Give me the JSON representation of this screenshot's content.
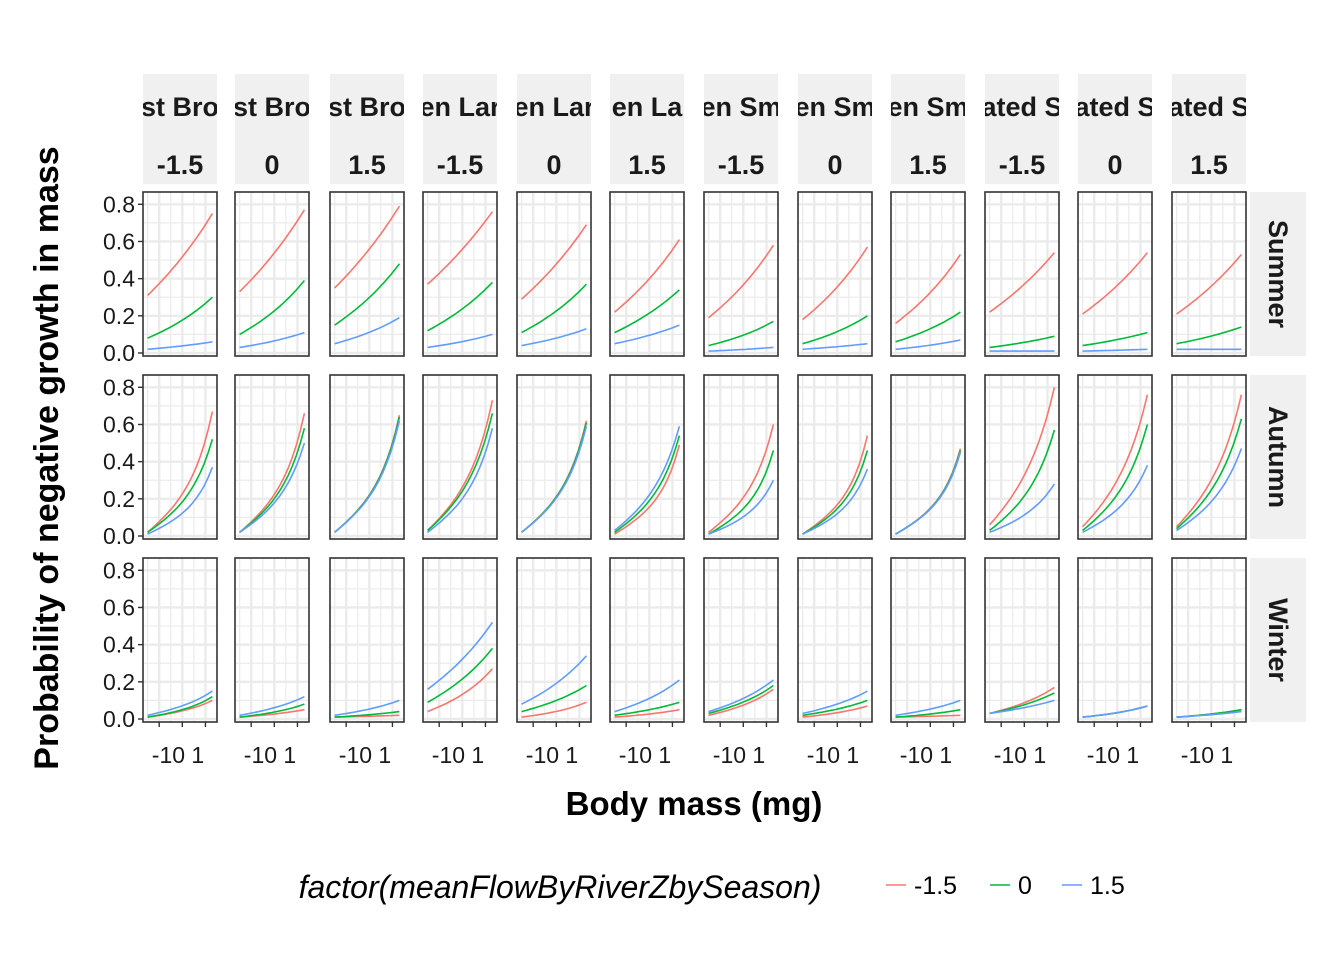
{
  "colors": {
    "series": [
      "#F8766D",
      "#00BA38",
      "#619CFF"
    ],
    "strip_background": "#F0F0F0",
    "grid": "#EBEBEB",
    "panel_border": "#333333"
  },
  "legend": {
    "title": "factor(meanFlowByRiverZbySeason)",
    "position": "bottom",
    "items": [
      "-1.5",
      "0",
      "1.5"
    ]
  },
  "chart_data": {
    "type": "line",
    "xlabel": "Body mass (mg)",
    "ylabel": "Probability of negative growth in mass",
    "grid": true,
    "ylim": [
      0,
      0.85
    ],
    "y_ticks": [
      "0.0",
      "0.2",
      "0.4",
      "0.6",
      "0.8"
    ],
    "x_tick_label": "-10 1",
    "x_tick_label_text": [
      "-10",
      "1"
    ],
    "x_ticks": [
      -1,
      0,
      1
    ],
    "x_tick_labels": [
      "-1",
      "0",
      "1"
    ],
    "xlim": [
      -1.7,
      1.5
    ],
    "x_range": [
      -1.5,
      1.3
    ],
    "column_headers_top": [
      "st Bro",
      "st Bro",
      "st Bro",
      "en Lar",
      "en Lar",
      "en La",
      "en Sm",
      "en Sm",
      "en Sm",
      "ated S",
      "ated S",
      "ated S"
    ],
    "column_headers_bottom": [
      "-1.5",
      "0",
      "1.5",
      "-1.5",
      "0",
      "1.5",
      "-1.5",
      "0",
      "1.5",
      "-1.5",
      "0",
      "1.5"
    ],
    "row_headers": [
      "Summer",
      "Autumn",
      "Winter"
    ],
    "series_names": [
      "-1.5",
      "0",
      "1.5"
    ],
    "panels": [
      [
        {
          "series": [
            [
              0.31,
              0.75
            ],
            [
              0.08,
              0.3
            ],
            [
              0.02,
              0.06
            ]
          ]
        },
        {
          "series": [
            [
              0.33,
              0.77
            ],
            [
              0.1,
              0.39
            ],
            [
              0.03,
              0.11
            ]
          ]
        },
        {
          "series": [
            [
              0.35,
              0.79
            ],
            [
              0.15,
              0.48
            ],
            [
              0.05,
              0.19
            ]
          ]
        },
        {
          "series": [
            [
              0.37,
              0.76
            ],
            [
              0.12,
              0.38
            ],
            [
              0.03,
              0.1
            ]
          ]
        },
        {
          "series": [
            [
              0.29,
              0.69
            ],
            [
              0.11,
              0.37
            ],
            [
              0.04,
              0.13
            ]
          ]
        },
        {
          "series": [
            [
              0.22,
              0.61
            ],
            [
              0.11,
              0.34
            ],
            [
              0.05,
              0.15
            ]
          ]
        },
        {
          "series": [
            [
              0.19,
              0.58
            ],
            [
              0.04,
              0.17
            ],
            [
              0.01,
              0.03
            ]
          ]
        },
        {
          "series": [
            [
              0.18,
              0.57
            ],
            [
              0.05,
              0.2
            ],
            [
              0.02,
              0.05
            ]
          ]
        },
        {
          "series": [
            [
              0.16,
              0.53
            ],
            [
              0.06,
              0.22
            ],
            [
              0.02,
              0.07
            ]
          ]
        },
        {
          "series": [
            [
              0.22,
              0.54
            ],
            [
              0.03,
              0.09
            ],
            [
              0.01,
              0.01
            ]
          ]
        },
        {
          "series": [
            [
              0.21,
              0.54
            ],
            [
              0.04,
              0.11
            ],
            [
              0.01,
              0.02
            ]
          ]
        },
        {
          "series": [
            [
              0.21,
              0.53
            ],
            [
              0.05,
              0.14
            ],
            [
              0.02,
              0.02
            ]
          ]
        }
      ],
      [
        {
          "series": [
            [
              0.02,
              0.67
            ],
            [
              0.02,
              0.52
            ],
            [
              0.01,
              0.37
            ]
          ]
        },
        {
          "series": [
            [
              0.02,
              0.66
            ],
            [
              0.02,
              0.58
            ],
            [
              0.02,
              0.5
            ]
          ]
        },
        {
          "series": [
            [
              0.02,
              0.65
            ],
            [
              0.02,
              0.64
            ],
            [
              0.02,
              0.62
            ]
          ]
        },
        {
          "series": [
            [
              0.03,
              0.73
            ],
            [
              0.03,
              0.66
            ],
            [
              0.02,
              0.58
            ]
          ]
        },
        {
          "series": [
            [
              0.02,
              0.62
            ],
            [
              0.02,
              0.61
            ],
            [
              0.02,
              0.59
            ]
          ]
        },
        {
          "series": [
            [
              0.01,
              0.49
            ],
            [
              0.02,
              0.54
            ],
            [
              0.03,
              0.59
            ]
          ]
        },
        {
          "series": [
            [
              0.02,
              0.6
            ],
            [
              0.01,
              0.46
            ],
            [
              0.01,
              0.3
            ]
          ]
        },
        {
          "series": [
            [
              0.01,
              0.54
            ],
            [
              0.01,
              0.46
            ],
            [
              0.01,
              0.36
            ]
          ]
        },
        {
          "series": [
            [
              0.01,
              0.47
            ],
            [
              0.01,
              0.46
            ],
            [
              0.01,
              0.45
            ]
          ]
        },
        {
          "series": [
            [
              0.06,
              0.8
            ],
            [
              0.03,
              0.57
            ],
            [
              0.02,
              0.28
            ]
          ]
        },
        {
          "series": [
            [
              0.05,
              0.76
            ],
            [
              0.03,
              0.6
            ],
            [
              0.02,
              0.38
            ]
          ]
        },
        {
          "series": [
            [
              0.05,
              0.76
            ],
            [
              0.04,
              0.63
            ],
            [
              0.03,
              0.47
            ]
          ]
        }
      ],
      [
        {
          "series": [
            [
              0.01,
              0.1
            ],
            [
              0.01,
              0.12
            ],
            [
              0.02,
              0.15
            ]
          ]
        },
        {
          "series": [
            [
              0.01,
              0.05
            ],
            [
              0.01,
              0.08
            ],
            [
              0.02,
              0.12
            ]
          ]
        },
        {
          "series": [
            [
              0.01,
              0.02
            ],
            [
              0.01,
              0.04
            ],
            [
              0.02,
              0.1
            ]
          ]
        },
        {
          "series": [
            [
              0.04,
              0.27
            ],
            [
              0.09,
              0.38
            ],
            [
              0.16,
              0.52
            ]
          ]
        },
        {
          "series": [
            [
              0.01,
              0.09
            ],
            [
              0.04,
              0.18
            ],
            [
              0.08,
              0.34
            ]
          ]
        },
        {
          "series": [
            [
              0.01,
              0.05
            ],
            [
              0.02,
              0.09
            ],
            [
              0.04,
              0.21
            ]
          ]
        },
        {
          "series": [
            [
              0.02,
              0.16
            ],
            [
              0.03,
              0.18
            ],
            [
              0.04,
              0.21
            ]
          ]
        },
        {
          "series": [
            [
              0.01,
              0.07
            ],
            [
              0.02,
              0.1
            ],
            [
              0.03,
              0.15
            ]
          ]
        },
        {
          "series": [
            [
              0.01,
              0.02
            ],
            [
              0.01,
              0.05
            ],
            [
              0.02,
              0.1
            ]
          ]
        },
        {
          "series": [
            [
              0.03,
              0.17
            ],
            [
              0.03,
              0.14
            ],
            [
              0.03,
              0.1
            ]
          ]
        },
        {
          "series": [
            [
              0.01,
              0.07
            ],
            [
              0.01,
              0.07
            ],
            [
              0.01,
              0.07
            ]
          ]
        },
        {
          "series": [
            [
              0.01,
              0.05
            ],
            [
              0.01,
              0.05
            ],
            [
              0.01,
              0.04
            ]
          ]
        }
      ]
    ]
  }
}
